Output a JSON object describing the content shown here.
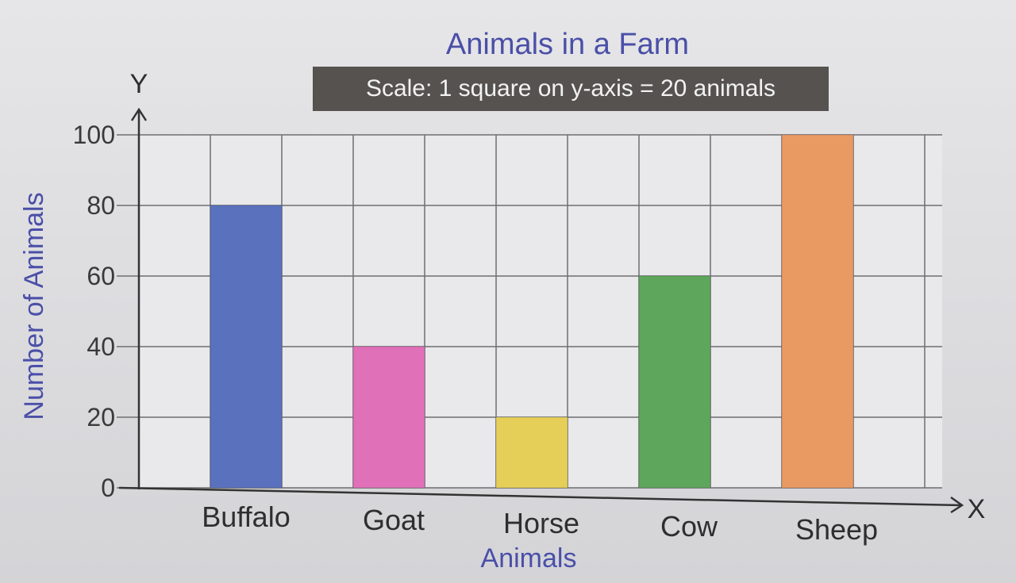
{
  "chart_data": {
    "type": "bar",
    "title": "Animals in a Farm",
    "subtitle": "Scale: 1 square on y-axis = 20 animals",
    "xlabel": "Animals",
    "ylabel": "Number of Animals",
    "x_axis_letter": "X",
    "y_axis_letter": "Y",
    "categories": [
      "Buffalo",
      "Goat",
      "Horse",
      "Cow",
      "Sheep"
    ],
    "values": [
      80,
      40,
      20,
      60,
      100
    ],
    "colors": [
      "#5a72be",
      "#e070b8",
      "#e6cf58",
      "#5ea65c",
      "#e99a62"
    ],
    "ylim": [
      0,
      100
    ],
    "yticks": [
      0,
      20,
      40,
      60,
      80,
      100
    ],
    "grid": true,
    "legend": "none"
  }
}
